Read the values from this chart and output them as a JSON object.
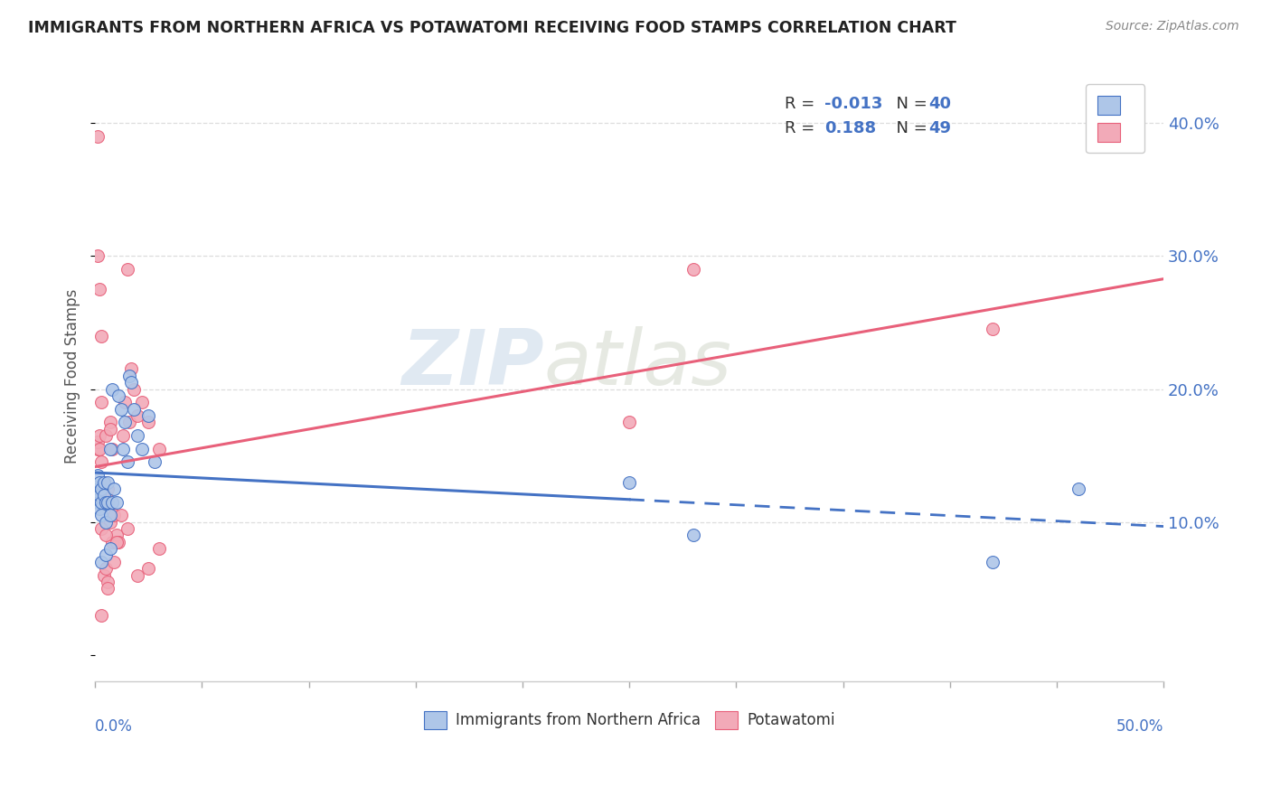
{
  "title": "IMMIGRANTS FROM NORTHERN AFRICA VS POTAWATOMI RECEIVING FOOD STAMPS CORRELATION CHART",
  "source": "Source: ZipAtlas.com",
  "ylabel": "Receiving Food Stamps",
  "legend_blue_label": "Immigrants from Northern Africa",
  "legend_pink_label": "Potawatomi",
  "xmin": 0.0,
  "xmax": 0.5,
  "ymin": -0.02,
  "ymax": 0.44,
  "blue_color": "#aec6e8",
  "pink_color": "#f2aab8",
  "blue_line_color": "#4472c4",
  "pink_line_color": "#e8607a",
  "watermark_zip": "ZIP",
  "watermark_atlas": "atlas",
  "blue_r": "-0.013",
  "blue_n": "40",
  "pink_r": "0.188",
  "pink_n": "49",
  "right_ytick_vals": [
    0.1,
    0.2,
    0.3,
    0.4
  ],
  "right_ytick_labels": [
    "10.0%",
    "20.0%",
    "30.0%",
    "40.0%"
  ],
  "blue_x": [
    0.001,
    0.001,
    0.001,
    0.002,
    0.002,
    0.002,
    0.003,
    0.003,
    0.003,
    0.004,
    0.004,
    0.005,
    0.005,
    0.006,
    0.006,
    0.007,
    0.007,
    0.008,
    0.008,
    0.009,
    0.01,
    0.011,
    0.012,
    0.013,
    0.014,
    0.015,
    0.016,
    0.017,
    0.018,
    0.02,
    0.022,
    0.025,
    0.028,
    0.003,
    0.005,
    0.007,
    0.25,
    0.28,
    0.42,
    0.46
  ],
  "blue_y": [
    0.125,
    0.115,
    0.135,
    0.13,
    0.12,
    0.11,
    0.125,
    0.115,
    0.105,
    0.12,
    0.13,
    0.115,
    0.1,
    0.13,
    0.115,
    0.155,
    0.105,
    0.2,
    0.115,
    0.125,
    0.115,
    0.195,
    0.185,
    0.155,
    0.175,
    0.145,
    0.21,
    0.205,
    0.185,
    0.165,
    0.155,
    0.18,
    0.145,
    0.07,
    0.075,
    0.08,
    0.13,
    0.09,
    0.07,
    0.125
  ],
  "pink_x": [
    0.001,
    0.001,
    0.001,
    0.002,
    0.002,
    0.003,
    0.003,
    0.003,
    0.004,
    0.004,
    0.005,
    0.005,
    0.005,
    0.006,
    0.006,
    0.007,
    0.007,
    0.008,
    0.008,
    0.009,
    0.009,
    0.01,
    0.011,
    0.012,
    0.013,
    0.014,
    0.015,
    0.016,
    0.017,
    0.018,
    0.02,
    0.022,
    0.025,
    0.03,
    0.003,
    0.005,
    0.007,
    0.25,
    0.28,
    0.42,
    0.001,
    0.002,
    0.003,
    0.006,
    0.01,
    0.015,
    0.02,
    0.025,
    0.03
  ],
  "pink_y": [
    0.155,
    0.16,
    0.3,
    0.165,
    0.275,
    0.145,
    0.19,
    0.24,
    0.13,
    0.06,
    0.12,
    0.165,
    0.065,
    0.125,
    0.055,
    0.175,
    0.1,
    0.155,
    0.085,
    0.105,
    0.07,
    0.09,
    0.085,
    0.105,
    0.165,
    0.19,
    0.29,
    0.175,
    0.215,
    0.2,
    0.18,
    0.19,
    0.175,
    0.155,
    0.095,
    0.09,
    0.17,
    0.175,
    0.29,
    0.245,
    0.39,
    0.155,
    0.03,
    0.05,
    0.085,
    0.095,
    0.06,
    0.065,
    0.08
  ],
  "blue_line_solid_end": 0.25,
  "pink_line_yintercept": 0.155,
  "pink_line_slope": 0.135
}
